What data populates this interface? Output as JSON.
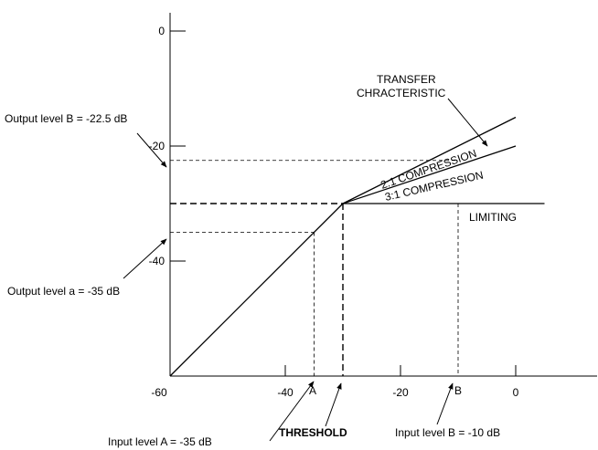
{
  "chart_data": {
    "type": "line",
    "title": "",
    "xlabel": "",
    "ylabel": "",
    "xlim": [
      -60,
      5
    ],
    "ylim": [
      -60,
      0
    ],
    "x_ticks": [
      "-60",
      "-40",
      "-20",
      "0"
    ],
    "y_ticks": [
      "0",
      "-20",
      "-40"
    ],
    "threshold": -30,
    "series": [
      {
        "name": "",
        "x": [
          -60,
          -30
        ],
        "y": [
          -60,
          -30
        ]
      },
      {
        "name": "2:1 COMPRESSION",
        "x": [
          -30,
          0
        ],
        "y": [
          -30,
          -15
        ]
      },
      {
        "name": "3:1 COMPRESSION",
        "x": [
          -30,
          0
        ],
        "y": [
          -30,
          -20
        ]
      },
      {
        "name": "LIMITING",
        "x": [
          -30,
          5
        ],
        "y": [
          -30,
          -30
        ]
      }
    ],
    "markers": {
      "A": {
        "label": "A",
        "x": -35,
        "y": -35
      },
      "B": {
        "label": "B",
        "x": -10,
        "y": -22.5
      }
    },
    "annotations": {
      "transfer_line1": "TRANSFER",
      "transfer_line2": "CHRACTERISTIC",
      "output_b": "Output level B = -22.5 dB",
      "output_a": "Output level a = -35 dB",
      "input_a": "Input level A = -35 dB",
      "threshold": "THRESHOLD",
      "input_b": "Input level B = -10 dB"
    }
  }
}
